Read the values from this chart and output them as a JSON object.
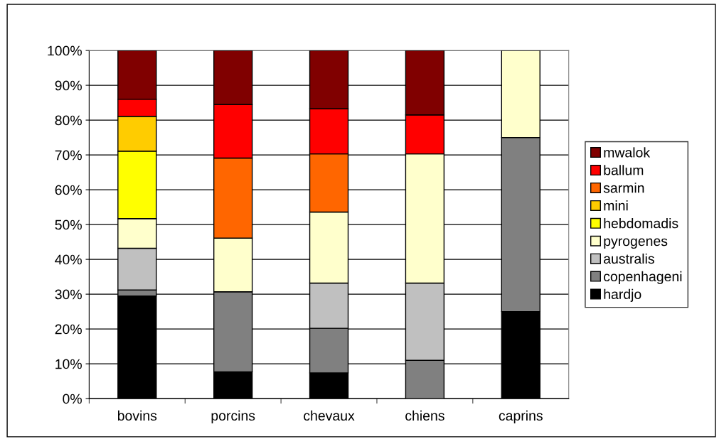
{
  "chart_data": {
    "type": "bar",
    "stacked": true,
    "categories": [
      "bovins",
      "porcins",
      "chevaux",
      "chiens",
      "caprins"
    ],
    "series": [
      {
        "name": "hardjo",
        "color": "#000000",
        "values": [
          29.5,
          7.7,
          7.4,
          null,
          25
        ]
      },
      {
        "name": "copenhageni",
        "color": "#808080",
        "values": [
          1.7,
          23.0,
          12.8,
          11.0,
          50
        ]
      },
      {
        "name": "australis",
        "color": "#c0c0c0",
        "values": [
          12.0,
          null,
          13.0,
          22.2,
          null
        ]
      },
      {
        "name": "pyrogenes",
        "color": "#ffffcc",
        "values": [
          8.5,
          15.4,
          20.4,
          37.1,
          25
        ]
      },
      {
        "name": "hebdomadis",
        "color": "#ffff00",
        "values": [
          19.4,
          null,
          null,
          null,
          null
        ]
      },
      {
        "name": "mini",
        "color": "#ffcc00",
        "values": [
          10.0,
          null,
          null,
          null,
          null
        ]
      },
      {
        "name": "sarmin",
        "color": "#ff6600",
        "values": [
          null,
          23.0,
          16.7,
          null,
          null
        ]
      },
      {
        "name": "ballum",
        "color": "#ff0000",
        "values": [
          4.9,
          15.4,
          13.0,
          11.2,
          null
        ]
      },
      {
        "name": "mwalok",
        "color": "#800000",
        "values": [
          14.0,
          15.5,
          16.7,
          18.5,
          null
        ]
      }
    ],
    "ylim": [
      0,
      100
    ],
    "yticks": [
      {
        "value": 0,
        "label": "0%"
      },
      {
        "value": 10,
        "label": "10%"
      },
      {
        "value": 20,
        "label": "20%"
      },
      {
        "value": 30,
        "label": "30%"
      },
      {
        "value": 40,
        "label": "40%"
      },
      {
        "value": 50,
        "label": "50%"
      },
      {
        "value": 60,
        "label": "60%"
      },
      {
        "value": 70,
        "label": "70%"
      },
      {
        "value": 80,
        "label": "80%"
      },
      {
        "value": 90,
        "label": "90%"
      },
      {
        "value": 100,
        "label": "100%"
      }
    ],
    "grid": "y",
    "legend": "right"
  }
}
